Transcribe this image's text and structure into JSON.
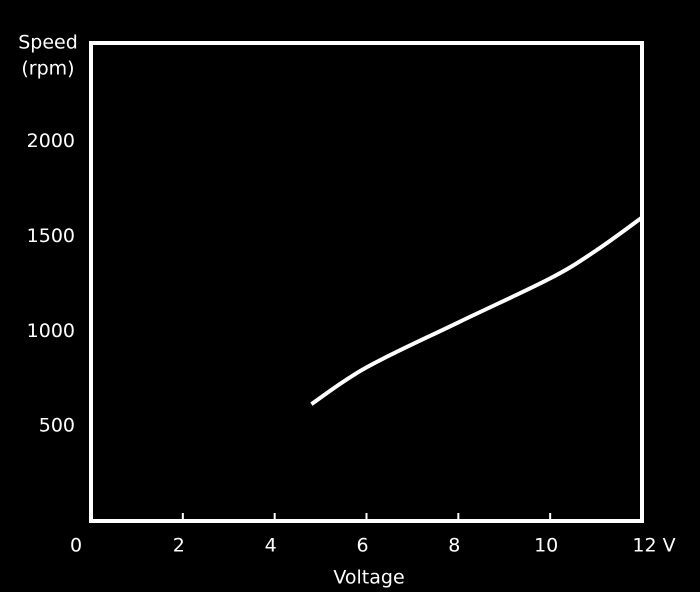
{
  "chart_data": {
    "type": "line",
    "ylabel": [
      "Speed",
      "(rpm)"
    ],
    "xlabel": "Voltage",
    "x": [
      4.8,
      6,
      8,
      10,
      11,
      12
    ],
    "series": [
      {
        "color": "#ffffff",
        "values": [
          616,
          810,
          1047,
          1279,
          1426,
          1600
        ]
      }
    ],
    "xlim": [
      0,
      12
    ],
    "ylim": [
      0,
      2520
    ],
    "xticks": [
      0,
      2,
      4,
      6,
      8,
      10,
      {
        "value": 12,
        "label": "12 V"
      }
    ],
    "yticks": [
      500,
      1000,
      1500,
      2000
    ],
    "grid": true
  }
}
